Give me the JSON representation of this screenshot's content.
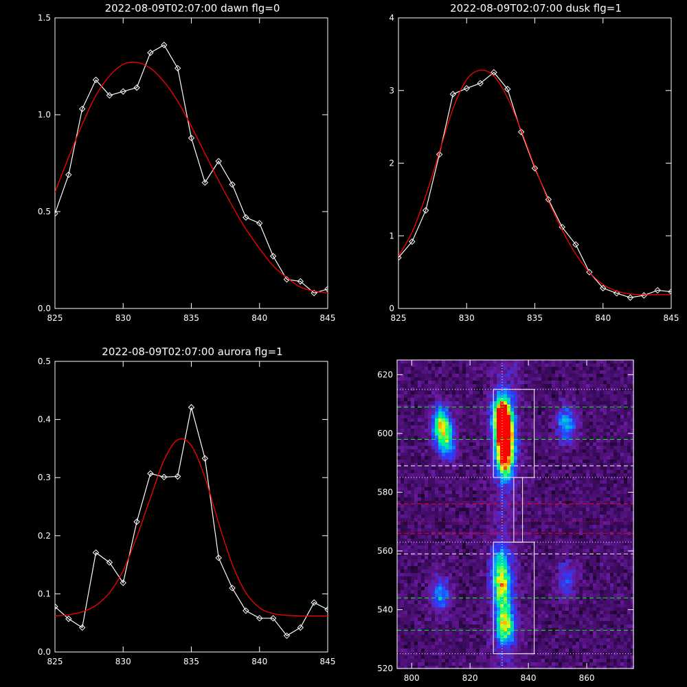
{
  "chart_data": [
    {
      "type": "line",
      "title": "2022-08-09T02:07:00 dawn flg=0",
      "xlim": [
        825,
        845
      ],
      "ylim": [
        0,
        1.5
      ],
      "xticks": [
        825,
        830,
        835,
        840,
        845
      ],
      "xtick_labels": [
        "825",
        "830",
        "835",
        "840",
        "845"
      ],
      "yticks": [
        0,
        0.5,
        1,
        1.5
      ],
      "ytick_labels": [
        "0.0",
        "0.5",
        "1.0",
        "1.5"
      ],
      "series": [
        {
          "style": "data-with-diamonds",
          "color": "#ffffff",
          "x": [
            825,
            826,
            827,
            828,
            829,
            830,
            831,
            832,
            833,
            834,
            835,
            836,
            837,
            838,
            839,
            840,
            841,
            842,
            843,
            844,
            845
          ],
          "y": [
            0.49,
            0.69,
            1.03,
            1.18,
            1.1,
            1.12,
            1.14,
            1.32,
            1.36,
            1.24,
            0.88,
            0.65,
            0.76,
            0.64,
            0.47,
            0.44,
            0.27,
            0.15,
            0.14,
            0.08,
            0.1
          ]
        },
        {
          "style": "fit-curve",
          "color": "#ff0000",
          "x": [
            825,
            826,
            827,
            828,
            829,
            830,
            831,
            832,
            833,
            834,
            835,
            836,
            837,
            838,
            839,
            840,
            841,
            842,
            843,
            844,
            845
          ],
          "y": [
            0.6,
            0.78,
            0.95,
            1.1,
            1.2,
            1.26,
            1.27,
            1.24,
            1.17,
            1.07,
            0.94,
            0.8,
            0.66,
            0.53,
            0.41,
            0.31,
            0.22,
            0.16,
            0.11,
            0.09,
            0.08
          ]
        }
      ]
    },
    {
      "type": "line",
      "title": "2022-08-09T02:07:00 dusk flg=1",
      "xlim": [
        825,
        845
      ],
      "ylim": [
        0,
        4
      ],
      "xticks": [
        825,
        830,
        835,
        840,
        845
      ],
      "xtick_labels": [
        "825",
        "830",
        "835",
        "840",
        "845"
      ],
      "yticks": [
        0,
        1,
        2,
        3,
        4
      ],
      "ytick_labels": [
        "0",
        "1",
        "2",
        "3",
        "4"
      ],
      "series": [
        {
          "style": "data-with-diamonds",
          "color": "#ffffff",
          "x": [
            825,
            826,
            827,
            828,
            829,
            830,
            831,
            832,
            833,
            834,
            835,
            836,
            837,
            838,
            839,
            840,
            841,
            842,
            843,
            844,
            845
          ],
          "y": [
            0.7,
            0.92,
            1.35,
            2.12,
            2.95,
            3.03,
            3.1,
            3.25,
            3.02,
            2.43,
            1.93,
            1.5,
            1.12,
            0.88,
            0.5,
            0.28,
            0.21,
            0.15,
            0.18,
            0.25,
            0.23
          ]
        },
        {
          "style": "fit-curve",
          "color": "#ff0000",
          "x": [
            825,
            826,
            827,
            828,
            829,
            830,
            831,
            832,
            833,
            834,
            835,
            836,
            837,
            838,
            839,
            840,
            841,
            842,
            843,
            844,
            845
          ],
          "y": [
            0.72,
            1.05,
            1.55,
            2.15,
            2.75,
            3.15,
            3.28,
            3.2,
            2.9,
            2.45,
            1.95,
            1.48,
            1.08,
            0.75,
            0.5,
            0.33,
            0.24,
            0.2,
            0.19,
            0.19,
            0.19
          ]
        }
      ]
    },
    {
      "type": "line",
      "title": "2022-08-09T02:07:00 aurora flg=1",
      "xlim": [
        825,
        845
      ],
      "ylim": [
        0,
        0.5
      ],
      "xticks": [
        825,
        830,
        835,
        840,
        845
      ],
      "xtick_labels": [
        "825",
        "830",
        "835",
        "840",
        "845"
      ],
      "yticks": [
        0,
        0.1,
        0.2,
        0.3,
        0.4,
        0.5
      ],
      "ytick_labels": [
        "0.0",
        "0.1",
        "0.2",
        "0.3",
        "0.4",
        "0.5"
      ],
      "series": [
        {
          "style": "data-with-diamonds",
          "color": "#ffffff",
          "x": [
            825,
            826,
            827,
            828,
            829,
            830,
            831,
            832,
            833,
            834,
            835,
            836,
            837,
            838,
            839,
            840,
            841,
            842,
            843,
            844,
            845
          ],
          "y": [
            0.078,
            0.057,
            0.042,
            0.171,
            0.154,
            0.119,
            0.224,
            0.307,
            0.301,
            0.302,
            0.421,
            0.333,
            0.162,
            0.11,
            0.071,
            0.058,
            0.058,
            0.028,
            0.042,
            0.085,
            0.073
          ]
        },
        {
          "style": "fit-curve",
          "color": "#ff0000",
          "x": [
            825,
            826,
            827,
            828,
            829,
            830,
            831,
            832,
            833,
            834,
            835,
            836,
            837,
            838,
            839,
            840,
            841,
            842,
            843,
            844,
            845
          ],
          "y": [
            0.062,
            0.064,
            0.069,
            0.08,
            0.102,
            0.14,
            0.198,
            0.265,
            0.33,
            0.365,
            0.355,
            0.3,
            0.222,
            0.151,
            0.102,
            0.076,
            0.066,
            0.063,
            0.062,
            0.062,
            0.062
          ]
        }
      ]
    },
    {
      "type": "heatmap",
      "title": "",
      "xlim": [
        795,
        876
      ],
      "ylim": [
        520,
        625
      ],
      "xticks": [
        800,
        820,
        840,
        860
      ],
      "xtick_labels": [
        "800",
        "820",
        "840",
        "860"
      ],
      "yticks": [
        520,
        540,
        560,
        580,
        600,
        620
      ],
      "ytick_labels": [
        "520",
        "540",
        "560",
        "580",
        "600",
        "620"
      ],
      "colormap": [
        "#000000",
        "#3a0a5c",
        "#6a1aa0",
        "#2a3cff",
        "#00a8ff",
        "#00ff80",
        "#ffff00",
        "#ff0000"
      ],
      "intensity_blobs": [
        {
          "x": 810,
          "y": 603,
          "level": 0.55
        },
        {
          "x": 812,
          "y": 597,
          "level": 0.4
        },
        {
          "x": 831,
          "y": 606,
          "level": 0.95
        },
        {
          "x": 832,
          "y": 598,
          "level": 0.8
        },
        {
          "x": 832,
          "y": 590,
          "level": 0.55
        },
        {
          "x": 853,
          "y": 603,
          "level": 0.4
        },
        {
          "x": 810,
          "y": 545,
          "level": 0.35
        },
        {
          "x": 831,
          "y": 547,
          "level": 0.5
        },
        {
          "x": 832,
          "y": 535,
          "level": 0.6
        },
        {
          "x": 830,
          "y": 555,
          "level": 0.35
        },
        {
          "x": 853,
          "y": 550,
          "level": 0.25
        }
      ],
      "vertical_dotted_line_x": 831,
      "boxes": [
        {
          "x0": 828,
          "x1": 842,
          "y0": 585,
          "y1": 615
        },
        {
          "x0": 828,
          "x1": 842,
          "y0": 525,
          "y1": 563
        },
        {
          "x0": 835,
          "x1": 838,
          "y0": 563,
          "y1": 585
        }
      ],
      "hlines": [
        {
          "y": 615,
          "color": "#ffffff",
          "style": "dotted"
        },
        {
          "y": 609,
          "color": "#00ff00",
          "style": "dashed"
        },
        {
          "y": 598,
          "color": "#00ff00",
          "style": "dashed"
        },
        {
          "y": 589,
          "color": "#ffffff",
          "style": "dashed"
        },
        {
          "y": 585,
          "color": "#ffffff",
          "style": "dotted"
        },
        {
          "y": 576,
          "color": "#ff0000",
          "style": "dashed"
        },
        {
          "y": 570,
          "color": "#ff0000",
          "style": "dotted"
        },
        {
          "y": 566,
          "color": "#ff0000",
          "style": "dashed"
        },
        {
          "y": 563,
          "color": "#ffffff",
          "style": "dotted"
        },
        {
          "y": 559,
          "color": "#ffffff",
          "style": "dashed"
        },
        {
          "y": 544,
          "color": "#00ff00",
          "style": "dashed"
        },
        {
          "y": 533,
          "color": "#00ff00",
          "style": "dashed"
        },
        {
          "y": 525,
          "color": "#ffffff",
          "style": "dotted"
        }
      ]
    }
  ]
}
